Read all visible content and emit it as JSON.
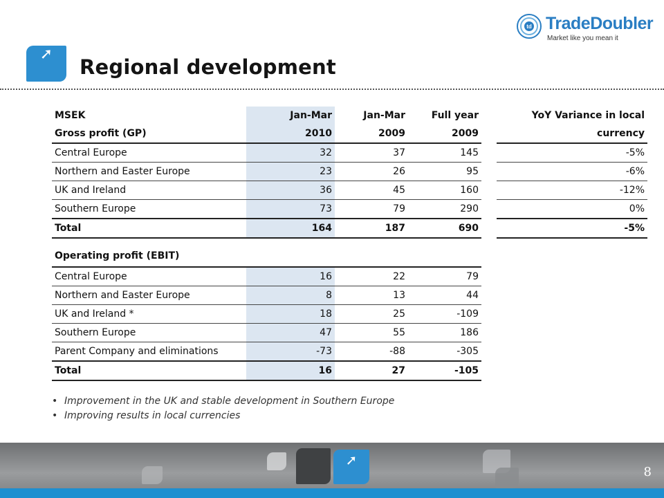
{
  "header": {
    "title": "Regional development",
    "title_icon": "arrow-up-right-icon",
    "logo_brand": "TradeDoubler",
    "logo_tagline": "Market like you mean it",
    "logo_badge": "td"
  },
  "gp_table": {
    "header_row1": [
      "MSEK",
      "Jan-Mar",
      "Jan-Mar",
      "Full year"
    ],
    "header_row2": [
      "Gross profit (GP)",
      "2010",
      "2009",
      "2009"
    ],
    "rows": [
      [
        "Central Europe",
        "32",
        "37",
        "145"
      ],
      [
        "Northern and Easter Europe",
        "23",
        "26",
        "95"
      ],
      [
        "UK and Ireland",
        "36",
        "45",
        "160"
      ],
      [
        "Southern Europe",
        "73",
        "79",
        "290"
      ]
    ],
    "total": [
      "Total",
      "164",
      "187",
      "690"
    ]
  },
  "yoy_table": {
    "header_line1": "YoY Variance in local",
    "header_line2": "currency",
    "rows": [
      "-5%",
      "-6%",
      "-12%",
      "0%"
    ],
    "total": "-5%"
  },
  "ebit_table": {
    "header": "Operating profit (EBIT)",
    "rows": [
      [
        "Central Europe",
        "16",
        "22",
        "79"
      ],
      [
        "Northern and Easter Europe",
        "8",
        "13",
        "44"
      ],
      [
        "UK and Ireland *",
        "18",
        "25",
        "-109"
      ],
      [
        "Southern Europe",
        "47",
        "55",
        "186"
      ],
      [
        "Parent Company and eliminations",
        "-73",
        "-88",
        "-305"
      ]
    ],
    "total": [
      "Total",
      "16",
      "27",
      "-105"
    ]
  },
  "bullets": [
    "Improvement in the UK and stable development in Southern Europe",
    "Improving results in local currencies"
  ],
  "footer": {
    "page_number": "8",
    "accent_color": "#1d8fd0"
  }
}
